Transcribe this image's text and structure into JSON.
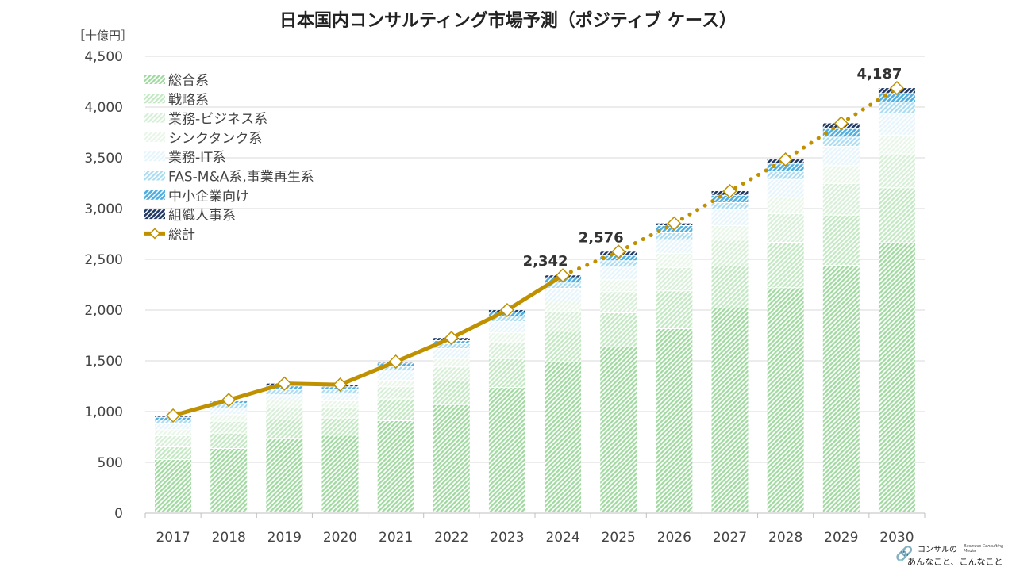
{
  "title": "日本国内コンサルティング市場予測（ポジティブ ケース）",
  "unit_label": "［十億円］",
  "logo": {
    "line1": "コンサルの",
    "line2": "あんなこと、こんなこと",
    "tagline": "Business Consulting Media"
  },
  "chart_data": {
    "type": "bar",
    "stacked": true,
    "title": "日本国内コンサルティング市場予測（ポジティブ ケース）",
    "ylabel": "［十億円］",
    "ylim": [
      0,
      4500
    ],
    "yticks": [
      0,
      500,
      1000,
      1500,
      2000,
      2500,
      3000,
      3500,
      4000,
      4500
    ],
    "ytick_labels": [
      "0",
      "500",
      "1,000",
      "1,500",
      "2,000",
      "2,500",
      "3,000",
      "3,500",
      "4,000",
      "4,500"
    ],
    "grid": true,
    "legend_position": "top-left",
    "categories": [
      "2017",
      "2018",
      "2019",
      "2020",
      "2021",
      "2022",
      "2023",
      "2024",
      "2025",
      "2026",
      "2027",
      "2028",
      "2029",
      "2030"
    ],
    "series": [
      {
        "name": "総合系",
        "color": "#9fd99f",
        "values": [
          523,
          633,
          732,
          763,
          906,
          1065,
          1234,
          1487,
          1635,
          1813,
          2016,
          2216,
          2438,
          2660
        ]
      },
      {
        "name": "戦略系",
        "color": "#c2e8c2",
        "values": [
          125,
          151,
          182,
          169,
          214,
          232,
          284,
          300,
          334,
          372,
          414,
          448,
          494,
          540
        ]
      },
      {
        "name": "業務-ビジネス系",
        "color": "#d6efd6",
        "values": [
          110,
          117,
          117,
          104,
          120,
          138,
          164,
          195,
          208,
          231,
          255,
          281,
          312,
          335
        ]
      },
      {
        "name": "シンクタンク系",
        "color": "#e8f6e8",
        "values": [
          60,
          65,
          78,
          66,
          65,
          83,
          90,
          104,
          117,
          139,
          143,
          162,
          175,
          185
        ]
      },
      {
        "name": "業務-IT系",
        "color": "#e6f5fb",
        "values": [
          57,
          65,
          53,
          67,
          91,
          99,
          110,
          125,
          125,
          135,
          156,
          177,
          190,
          215
        ]
      },
      {
        "name": "FAS-M&A系,事業再生系",
        "color": "#a9dcf2",
        "values": [
          39,
          45,
          51,
          44,
          44,
          47,
          55,
          52,
          63,
          68,
          71,
          78,
          91,
          110
        ]
      },
      {
        "name": "中小企業向け",
        "color": "#4faee0",
        "values": [
          26,
          26,
          35,
          27,
          34,
          31,
          40,
          52,
          52,
          70,
          72,
          74,
          84,
          85
        ]
      },
      {
        "name": "組織人事系",
        "color": "#1f3864",
        "values": [
          21,
          13,
          28,
          25,
          18,
          30,
          23,
          27,
          42,
          26,
          45,
          48,
          56,
          57
        ]
      }
    ],
    "total_series": {
      "name": "総計",
      "color": "#bf9000",
      "values": [
        961,
        1115,
        1276,
        1265,
        1492,
        1725,
        2000,
        2342,
        2576,
        2854,
        3172,
        3484,
        3840,
        4187
      ],
      "actual_until": "2024",
      "forecast_style": "dotted"
    },
    "data_labels": [
      {
        "category": "2024",
        "text": "2,342"
      },
      {
        "category": "2025",
        "text": "2,576"
      },
      {
        "category": "2030",
        "text": "4,187"
      }
    ]
  }
}
